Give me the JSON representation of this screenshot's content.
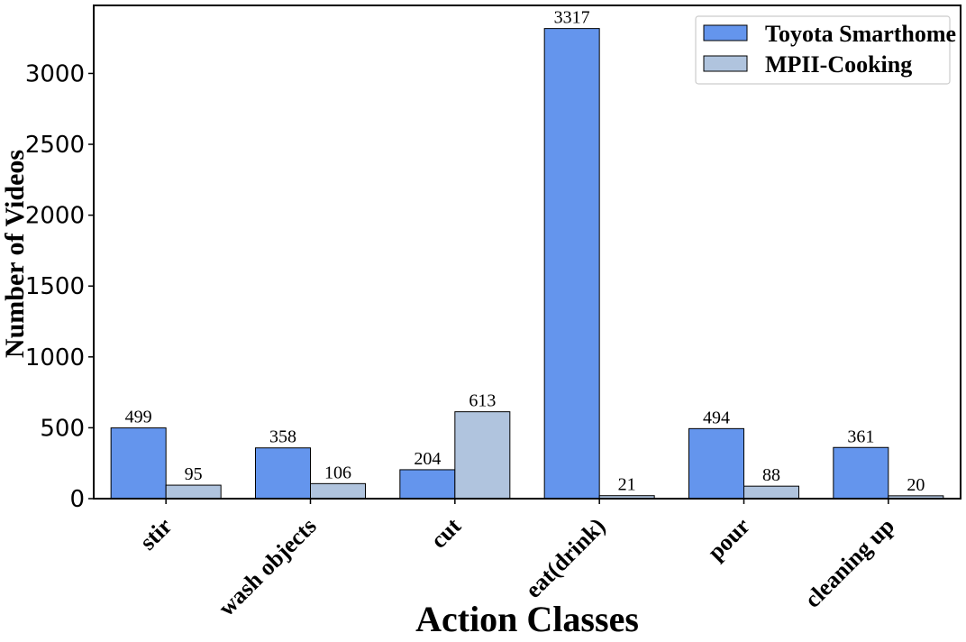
{
  "chart_data": {
    "type": "bar",
    "categories": [
      "stir",
      "wash objects",
      "cut",
      "eat(drink)",
      "pour",
      "cleaning up"
    ],
    "series": [
      {
        "name": "Toyota Smarthome",
        "values": [
          499,
          358,
          204,
          3317,
          494,
          361
        ],
        "color": "#6495ED"
      },
      {
        "name": "MPII-Cooking",
        "values": [
          95,
          106,
          613,
          21,
          88,
          20
        ],
        "color": "#B0C4DE"
      }
    ],
    "xlabel": "Action Classes",
    "ylabel": "Number of Videos",
    "ylim": [
      0,
      3480
    ],
    "yticks": [
      0,
      500,
      1000,
      1500,
      2000,
      2500,
      3000
    ],
    "grid": false,
    "legend_position": "top-right"
  }
}
